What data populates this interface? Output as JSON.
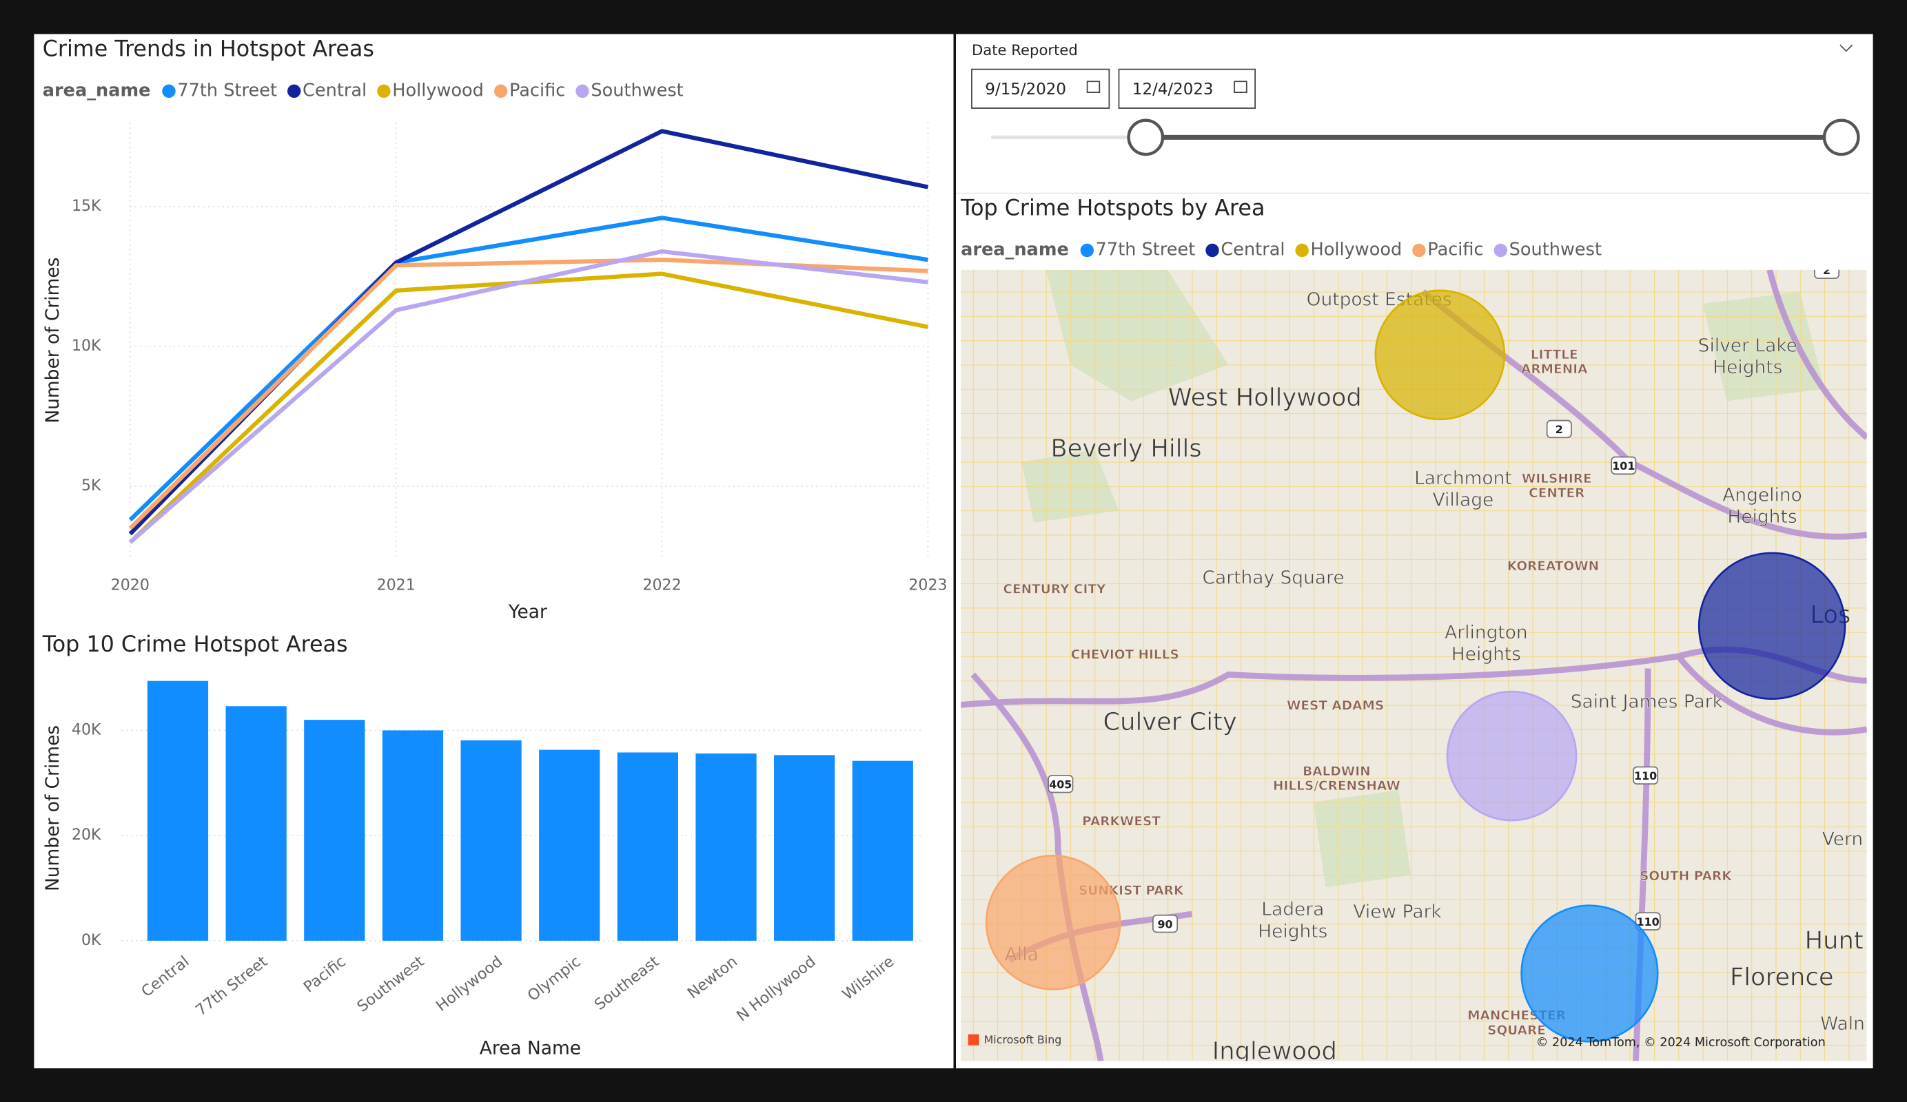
{
  "chart_data": [
    {
      "type": "line",
      "title": "Crime Trends in Hotspot Areas",
      "legend_title": "area_name",
      "x_label": "Year",
      "y_label": "Number of Crimes",
      "x": [
        2020,
        2021,
        2022,
        2023
      ],
      "xlim": [
        2020,
        2023
      ],
      "xticks": [
        2020,
        2021,
        2022,
        2023
      ],
      "ylim": [
        2400,
        18000
      ],
      "yticks": [
        {
          "value": 5000,
          "label": "5K"
        },
        {
          "value": 10000,
          "label": "10K"
        },
        {
          "value": 15000,
          "label": "15K"
        }
      ],
      "grid": true,
      "series": [
        {
          "name": "77th Street",
          "color": "#118DFF",
          "values": [
            3800,
            13000,
            14600,
            13100
          ]
        },
        {
          "name": "Central",
          "color": "#12239E",
          "values": [
            3300,
            13000,
            17700,
            15700
          ]
        },
        {
          "name": "Hollywood",
          "color": "#D9B300",
          "values": [
            3000,
            12000,
            12600,
            10700
          ]
        },
        {
          "name": "Pacific",
          "color": "#F9A66C",
          "values": [
            3500,
            12900,
            13100,
            12700
          ]
        },
        {
          "name": "Southwest",
          "color": "#B8A6F2",
          "values": [
            3000,
            11300,
            13400,
            12300
          ]
        }
      ]
    },
    {
      "type": "bar",
      "title": "Top 10 Crime Hotspot Areas",
      "x_label": "Area Name",
      "y_label": "Number of Crimes",
      "categories": [
        "Central",
        "77th Street",
        "Pacific",
        "Southwest",
        "Hollywood",
        "Olympic",
        "Southeast",
        "Newton",
        "N Hollywood",
        "Wilshire"
      ],
      "values": [
        49400,
        44600,
        42000,
        40000,
        38100,
        36300,
        35800,
        35600,
        35300,
        34200
      ],
      "color": "#118DFF",
      "ylim": [
        0,
        52000
      ],
      "yticks": [
        {
          "value": 0,
          "label": "0K"
        },
        {
          "value": 20000,
          "label": "20K"
        },
        {
          "value": 40000,
          "label": "40K"
        }
      ],
      "grid": true
    },
    {
      "type": "map",
      "title": "Top Crime Hotspots by Area",
      "legend_title": "area_name",
      "series": [
        {
          "name": "77th Street",
          "color": "#118DFF"
        },
        {
          "name": "Central",
          "color": "#12239E"
        },
        {
          "name": "Hollywood",
          "color": "#D9B300"
        },
        {
          "name": "Pacific",
          "color": "#F9A66C"
        },
        {
          "name": "Southwest",
          "color": "#B8A6F2"
        }
      ],
      "place_labels": [
        "Outpost Estates",
        [
          "LITTLE",
          "ARMENIA"
        ],
        [
          "Silver Lake",
          "Heights"
        ],
        "West Hollywood",
        "Beverly Hills",
        [
          "Larchmont",
          "Village"
        ],
        [
          "WILSHIRE",
          "CENTER"
        ],
        [
          "Angelino",
          "Heights"
        ],
        "KOREATOWN",
        "CENTURY CITY",
        "Carthay Square",
        "CHEVIOT HILLS",
        [
          "Arlington",
          "Heights"
        ],
        "Los",
        "WEST ADAMS",
        "Saint James Park",
        "Culver City",
        [
          "BALDWIN",
          "HILLS/CRENSHAW"
        ],
        "PARKWEST",
        "SUNKIST PARK",
        [
          "Ladera",
          "Heights"
        ],
        "View Park",
        "SOUTH PARK",
        "Alla",
        "Hunt",
        "Florence",
        "Vern",
        [
          "MANCHESTER",
          "SQUARE"
        ],
        "Inglewood",
        "Waln"
      ],
      "road_shields": [
        "2",
        "101",
        "405",
        "110",
        "90",
        "110",
        "2"
      ],
      "attribution": [
        "Microsoft Bing",
        "© 2024 TomTom, © 2024 Microsoft Corporation"
      ]
    }
  ],
  "date_slicer": {
    "label": "Date Reported",
    "start": "9/15/2020",
    "end": "12/4/2023"
  }
}
